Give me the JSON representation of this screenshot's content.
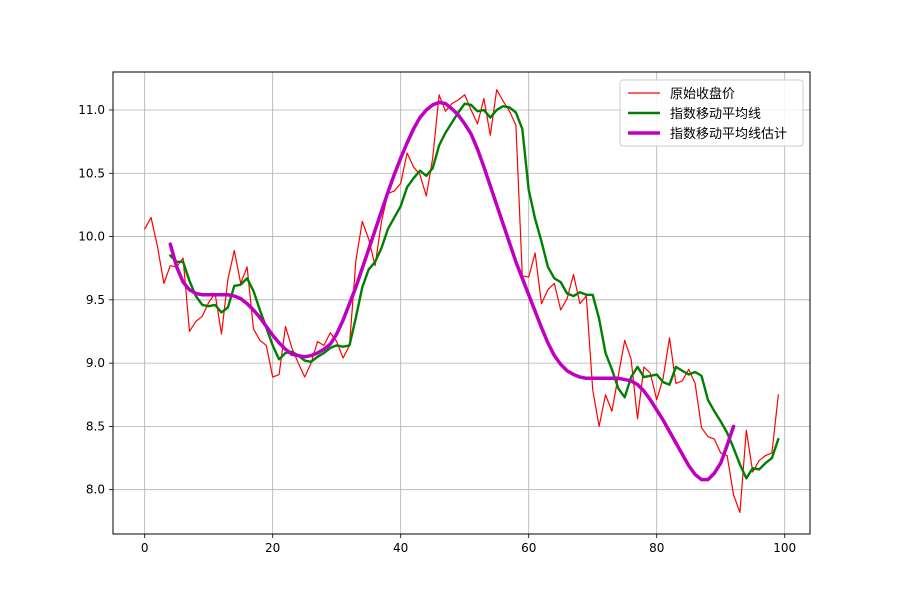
{
  "chart_data": {
    "type": "line",
    "title": "",
    "xlabel": "",
    "ylabel": "",
    "xlim": [
      -4.95,
      103.95
    ],
    "ylim": [
      7.65,
      11.3
    ],
    "xticks": [
      0,
      20,
      40,
      60,
      80,
      100
    ],
    "yticks": [
      8.0,
      8.5,
      9.0,
      9.5,
      10.0,
      10.5,
      11.0
    ],
    "xtick_labels": [
      "0",
      "20",
      "40",
      "60",
      "80",
      "100"
    ],
    "ytick_labels": [
      "8.0",
      "8.5",
      "9.0",
      "9.5",
      "10.0",
      "10.5",
      "11.0"
    ],
    "grid": true,
    "legend_position": "top-right",
    "series": [
      {
        "name": "原始收盘价",
        "color": "#ff0000",
        "x_start": 0,
        "values": [
          10.06,
          10.15,
          9.92,
          9.63,
          9.77,
          9.76,
          9.83,
          9.25,
          9.33,
          9.37,
          9.48,
          9.55,
          9.23,
          9.66,
          9.89,
          9.63,
          9.76,
          9.27,
          9.18,
          9.14,
          8.89,
          8.91,
          9.29,
          9.12,
          9.0,
          8.89,
          9.0,
          9.17,
          9.14,
          9.24,
          9.17,
          9.04,
          9.14,
          9.81,
          10.12,
          9.98,
          9.77,
          10.12,
          10.34,
          10.36,
          10.42,
          10.66,
          10.55,
          10.49,
          10.32,
          10.62,
          11.12,
          10.99,
          11.05,
          11.08,
          11.12,
          11.0,
          10.89,
          11.09,
          10.8,
          11.16,
          11.07,
          10.99,
          10.88,
          9.69,
          9.68,
          9.87,
          9.47,
          9.58,
          9.63,
          9.42,
          9.51,
          9.7,
          9.47,
          9.53,
          8.79,
          8.5,
          8.75,
          8.62,
          8.9,
          9.18,
          9.03,
          8.56,
          8.97,
          8.92,
          8.71,
          8.88,
          9.2,
          8.84,
          8.86,
          8.95,
          8.84,
          8.49,
          8.42,
          8.4,
          8.29,
          8.27,
          7.96,
          7.82,
          8.47,
          8.14,
          8.23,
          8.27,
          8.29,
          8.75
        ]
      },
      {
        "name": "指数移动平均线",
        "color": "#008000",
        "x_start": 4,
        "values": [
          9.85,
          9.8,
          9.8,
          9.65,
          9.53,
          9.46,
          9.45,
          9.46,
          9.4,
          9.44,
          9.61,
          9.62,
          9.67,
          9.57,
          9.42,
          9.28,
          9.14,
          9.03,
          9.08,
          9.09,
          9.06,
          9.02,
          9.01,
          9.05,
          9.08,
          9.12,
          9.14,
          9.13,
          9.14,
          9.36,
          9.6,
          9.74,
          9.8,
          9.91,
          10.06,
          10.15,
          10.24,
          10.39,
          10.46,
          10.52,
          10.48,
          10.54,
          10.72,
          10.82,
          10.9,
          10.98,
          11.05,
          11.04,
          10.99,
          11.0,
          10.94,
          11.0,
          11.03,
          11.02,
          10.98,
          10.85,
          10.37,
          10.14,
          9.96,
          9.76,
          9.67,
          9.64,
          9.55,
          9.53,
          9.56,
          9.54,
          9.54,
          9.35,
          9.08,
          8.95,
          8.8,
          8.73,
          8.89,
          8.97,
          8.89,
          8.9,
          8.91,
          8.85,
          8.83,
          8.97,
          8.94,
          8.91,
          8.93,
          8.9,
          8.71,
          8.62,
          8.54,
          8.45,
          8.33,
          8.2,
          8.09,
          8.17,
          8.16,
          8.21,
          8.25,
          8.4
        ]
      },
      {
        "name": "指数移动平均线估计",
        "color": "#bf00bf",
        "x_start": 4,
        "values": [
          9.94,
          9.76,
          9.64,
          9.58,
          9.55,
          9.54,
          9.54,
          9.54,
          9.54,
          9.54,
          9.53,
          9.51,
          9.47,
          9.42,
          9.36,
          9.29,
          9.22,
          9.16,
          9.11,
          9.07,
          9.06,
          9.05,
          9.06,
          9.08,
          9.11,
          9.15,
          9.23,
          9.34,
          9.47,
          9.6,
          9.75,
          9.9,
          10.05,
          10.2,
          10.35,
          10.49,
          10.62,
          10.74,
          10.85,
          10.94,
          11.0,
          11.04,
          11.06,
          11.05,
          11.01,
          10.96,
          10.89,
          10.81,
          10.69,
          10.55,
          10.4,
          10.25,
          10.1,
          9.95,
          9.8,
          9.67,
          9.54,
          9.41,
          9.28,
          9.16,
          9.06,
          8.99,
          8.94,
          8.91,
          8.89,
          8.88,
          8.88,
          8.88,
          8.88,
          8.88,
          8.88,
          8.87,
          8.86,
          8.83,
          8.78,
          8.71,
          8.63,
          8.55,
          8.46,
          8.37,
          8.28,
          8.19,
          8.12,
          8.08,
          8.08,
          8.13,
          8.21,
          8.35,
          8.5
        ]
      }
    ]
  }
}
